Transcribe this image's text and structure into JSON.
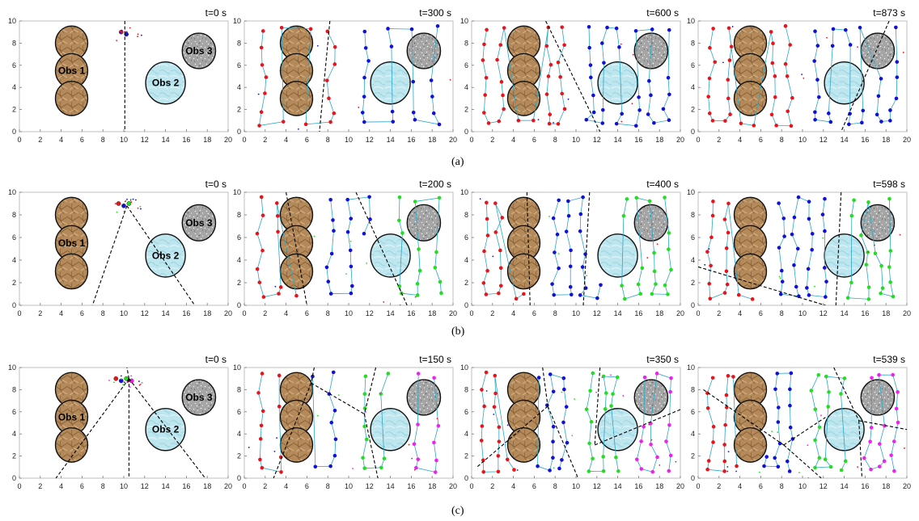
{
  "figure": {
    "rows": [
      {
        "caption": "(a)",
        "times": [
          "t=0 s",
          "t=300 s",
          "t=600 s",
          "t=873 s"
        ]
      },
      {
        "caption": "(b)",
        "times": [
          "t=0 s",
          "t=200 s",
          "t=400 s",
          "t=598 s"
        ]
      },
      {
        "caption": "(c)",
        "times": [
          "t=0 s",
          "t=150 s",
          "t=350 s",
          "t=539 s"
        ]
      }
    ]
  },
  "chart_data": {
    "type": "scatter",
    "xlim": [
      0,
      20
    ],
    "ylim": [
      0,
      10
    ],
    "xticks": [
      "0",
      "2",
      "4",
      "6",
      "8",
      "10",
      "12",
      "14",
      "16",
      "18",
      "20"
    ],
    "yticks": [
      "0",
      "2",
      "4",
      "6",
      "8",
      "10"
    ],
    "grid": false,
    "legend": "none",
    "obstacles": [
      {
        "label": "Obs 1",
        "shape": "triple-circle",
        "centers": [
          [
            5,
            8
          ],
          [
            5,
            5.5
          ],
          [
            5,
            3
          ]
        ],
        "radius": 1.55,
        "color": "#b58c5c"
      },
      {
        "label": "Obs 2",
        "shape": "circle",
        "center": [
          14,
          4.4
        ],
        "radius": 1.9,
        "color": "#bfe8ef"
      },
      {
        "label": "Obs 3",
        "shape": "circle",
        "center": [
          17.2,
          7.3
        ],
        "radius": 1.6,
        "color": "#a9a9a9"
      }
    ],
    "robot_colors": [
      "#e8141b",
      "#1010d8",
      "#22dd22",
      "#ee22ee"
    ],
    "rows": [
      {
        "robots": 2,
        "panels": [
          {
            "time": "t=0 s",
            "partition_lines": [
              [
                [
                  10.1,
                  10
                ],
                [
                  10.1,
                  0
                ]
              ]
            ]
          },
          {
            "time": "t=300 s",
            "partition_lines": [
              [
                [
                  8.2,
                  10
                ],
                [
                  7.2,
                  0
                ]
              ]
            ]
          },
          {
            "time": "t=600 s",
            "partition_lines": [
              [
                [
                  7.1,
                  10
                ],
                [
                  12.3,
                  0
                ]
              ]
            ]
          },
          {
            "time": "t=873 s",
            "partition_lines": [
              [
                [
                  18.3,
                  10
                ],
                [
                  13.7,
                  0
                ]
              ]
            ]
          }
        ]
      },
      {
        "robots": 3,
        "panels": [
          {
            "time": "t=0 s",
            "partition_lines": [
              [
                [
                  10.3,
                  8.8
                ],
                [
                  7,
                  0
                ]
              ],
              [
                [
                  10.3,
                  8.8
                ],
                [
                  16.8,
                  0
                ]
              ]
            ]
          },
          {
            "time": "t=200 s",
            "partition_lines": [
              [
                [
                  4,
                  10
                ],
                [
                  6,
                  0
                ]
              ],
              [
                [
                  10.7,
                  10
                ],
                [
                  15.6,
                  0
                ]
              ]
            ]
          },
          {
            "time": "t=400 s",
            "partition_lines": [
              [
                [
                  5.3,
                  10
                ],
                [
                  5.6,
                  0
                ]
              ],
              [
                [
                  11.3,
                  10
                ],
                [
                  10.7,
                  0
                ]
              ]
            ]
          },
          {
            "time": "t=598 s",
            "partition_lines": [
              [
                [
                  13.7,
                  10
                ],
                [
                  13.2,
                  0
                ]
              ],
              [
                [
                  0,
                  3.4
                ],
                [
                  12.2,
                  0
                ]
              ]
            ]
          }
        ]
      },
      {
        "robots": 4,
        "panels": [
          {
            "time": "t=0 s",
            "partition_lines": [
              [
                [
                  10.5,
                  9
                ],
                [
                  3.5,
                  0
                ]
              ],
              [
                [
                  10.5,
                  9
                ],
                [
                  10.5,
                  0
                ]
              ],
              [
                [
                  10.5,
                  9
                ],
                [
                  17.8,
                  0
                ]
              ],
              [
                [
                  10.5,
                  9
                ],
                [
                  10.3,
                  10
                ]
              ]
            ]
          },
          {
            "time": "t=150 s",
            "partition_lines": [
              [
                [
                  6.7,
                  10
                ],
                [
                  6.4,
                  8.6
                ]
              ],
              [
                [
                  6.4,
                  8.6
                ],
                [
                  2.8,
                  0
                ]
              ],
              [
                [
                  6.4,
                  8.6
                ],
                [
                  11.5,
                  5.8
                ]
              ],
              [
                [
                  12.6,
                  10
                ],
                [
                  11.5,
                  5.8
                ]
              ],
              [
                [
                  11.5,
                  5.8
                ],
                [
                  12.8,
                  0
                ]
              ]
            ]
          },
          {
            "time": "t=350 s",
            "partition_lines": [
              [
                [
                  6.8,
                  10
                ],
                [
                  7.3,
                  6.5
                ]
              ],
              [
                [
                  7.3,
                  6.5
                ],
                [
                  0.5,
                  1
                ]
              ],
              [
                [
                  7.3,
                  6.5
                ],
                [
                  10.2,
                  0
                ]
              ],
              [
                [
                  12.3,
                  10
                ],
                [
                  11.8,
                  3
                ]
              ],
              [
                [
                  11.8,
                  3
                ],
                [
                  20,
                  6.2
                ]
              ]
            ]
          },
          {
            "time": "t=539 s",
            "partition_lines": [
              [
                [
                  0.5,
                  8
                ],
                [
                  8.2,
                  3
                ]
              ],
              [
                [
                  8.2,
                  3
                ],
                [
                  11.8,
                  0
                ]
              ],
              [
                [
                  8.2,
                  3
                ],
                [
                  12.2,
                  5.5
                ]
              ],
              [
                [
                  13,
                  10
                ],
                [
                  15.4,
                  5.2
                ]
              ],
              [
                [
                  15.4,
                  5.2
                ],
                [
                  20,
                  4.4
                ]
              ],
              [
                [
                  15.4,
                  5.2
                ],
                [
                  15.7,
                  0
                ]
              ]
            ]
          }
        ]
      }
    ]
  }
}
